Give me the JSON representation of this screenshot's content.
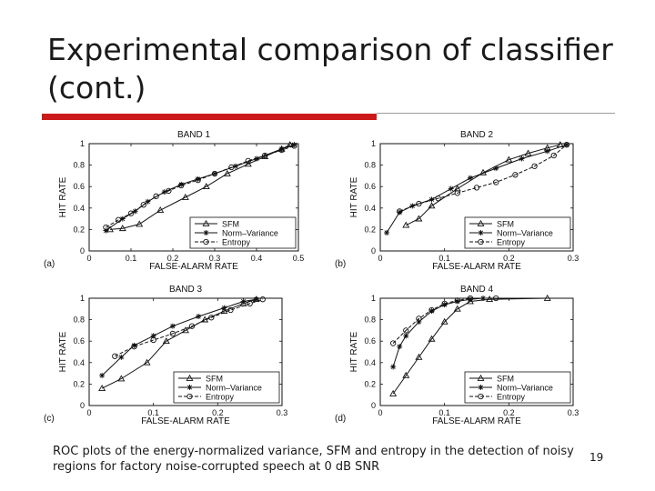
{
  "slide": {
    "title": "Experimental comparison of classifier (cont.)",
    "caption": "ROC plots of the energy-normalized variance, SFM and entropy in the detection of noisy regions for factory noise-corrupted speech at 0 dB SNR",
    "page_number": "19"
  },
  "colors": {
    "title_rule": "#cc1a1a",
    "rule_gray": "#9a9a9a",
    "ink": "#111111"
  },
  "chart_data": [
    {
      "type": "line",
      "panel_label": "(a)",
      "title": "BAND 1",
      "xlabel": "FALSE-ALARM RATE",
      "ylabel": "HIT RATE",
      "xlim": [
        0,
        0.5
      ],
      "ylim": [
        0,
        1
      ],
      "xticks": [
        "0",
        "0.1",
        "0.2",
        "0.3",
        "0.4",
        "0.5"
      ],
      "yticks": [
        "0",
        "0.2",
        "0.4",
        "0.6",
        "0.8",
        "1"
      ],
      "legend_position": "lower-right",
      "series": [
        {
          "name": "SFM",
          "marker": "triangle",
          "dash": "solid",
          "points": [
            [
              0.05,
              0.2
            ],
            [
              0.08,
              0.21
            ],
            [
              0.12,
              0.25
            ],
            [
              0.17,
              0.38
            ],
            [
              0.23,
              0.5
            ],
            [
              0.28,
              0.6
            ],
            [
              0.33,
              0.72
            ],
            [
              0.38,
              0.81
            ],
            [
              0.42,
              0.88
            ],
            [
              0.46,
              0.95
            ],
            [
              0.48,
              0.99
            ]
          ]
        },
        {
          "name": "Norm–Variance",
          "marker": "star",
          "dash": "solid",
          "points": [
            [
              0.04,
              0.19
            ],
            [
              0.08,
              0.3
            ],
            [
              0.11,
              0.37
            ],
            [
              0.14,
              0.46
            ],
            [
              0.18,
              0.55
            ],
            [
              0.22,
              0.62
            ],
            [
              0.26,
              0.67
            ],
            [
              0.3,
              0.72
            ],
            [
              0.35,
              0.79
            ],
            [
              0.4,
              0.86
            ],
            [
              0.46,
              0.95
            ],
            [
              0.49,
              0.99
            ]
          ]
        },
        {
          "name": "Entropy",
          "marker": "circle",
          "dash": "dashed",
          "points": [
            [
              0.04,
              0.22
            ],
            [
              0.07,
              0.29
            ],
            [
              0.1,
              0.35
            ],
            [
              0.13,
              0.43
            ],
            [
              0.16,
              0.51
            ],
            [
              0.19,
              0.56
            ],
            [
              0.22,
              0.61
            ],
            [
              0.26,
              0.66
            ],
            [
              0.3,
              0.72
            ],
            [
              0.34,
              0.78
            ],
            [
              0.38,
              0.84
            ],
            [
              0.42,
              0.89
            ],
            [
              0.46,
              0.94
            ],
            [
              0.49,
              0.98
            ]
          ]
        }
      ]
    },
    {
      "type": "line",
      "panel_label": "(b)",
      "title": "BAND 2",
      "xlabel": "FALSE-ALARM RATE",
      "ylabel": "HIT RATE",
      "xlim": [
        0,
        0.3
      ],
      "ylim": [
        0,
        1
      ],
      "xticks": [
        "0",
        "0.1",
        "0.2",
        "0.3"
      ],
      "yticks": [
        "0",
        "0.2",
        "0.4",
        "0.6",
        "0.8",
        "1"
      ],
      "legend_position": "lower-right",
      "series": [
        {
          "name": "SFM",
          "marker": "triangle",
          "dash": "solid",
          "points": [
            [
              0.04,
              0.24
            ],
            [
              0.06,
              0.3
            ],
            [
              0.08,
              0.42
            ],
            [
              0.12,
              0.58
            ],
            [
              0.16,
              0.73
            ],
            [
              0.2,
              0.85
            ],
            [
              0.23,
              0.91
            ],
            [
              0.26,
              0.96
            ],
            [
              0.28,
              0.99
            ]
          ]
        },
        {
          "name": "Norm–Variance",
          "marker": "star",
          "dash": "solid",
          "points": [
            [
              0.01,
              0.17
            ],
            [
              0.03,
              0.36
            ],
            [
              0.05,
              0.42
            ],
            [
              0.08,
              0.48
            ],
            [
              0.11,
              0.58
            ],
            [
              0.14,
              0.68
            ],
            [
              0.18,
              0.77
            ],
            [
              0.22,
              0.86
            ],
            [
              0.26,
              0.93
            ],
            [
              0.29,
              0.99
            ]
          ]
        },
        {
          "name": "Entropy",
          "marker": "circle",
          "dash": "dashed",
          "points": [
            [
              0.03,
              0.37
            ],
            [
              0.06,
              0.44
            ],
            [
              0.09,
              0.49
            ],
            [
              0.12,
              0.54
            ],
            [
              0.15,
              0.59
            ],
            [
              0.18,
              0.64
            ],
            [
              0.21,
              0.71
            ],
            [
              0.24,
              0.79
            ],
            [
              0.27,
              0.89
            ],
            [
              0.29,
              0.99
            ]
          ]
        }
      ]
    },
    {
      "type": "line",
      "panel_label": "(c)",
      "title": "BAND 3",
      "xlabel": "FALSE-ALARM RATE",
      "ylabel": "HIT RATE",
      "xlim": [
        0,
        0.3
      ],
      "ylim": [
        0,
        1
      ],
      "xticks": [
        "0",
        "0.1",
        "0.2",
        "0.3"
      ],
      "yticks": [
        "0",
        "0.2",
        "0.4",
        "0.6",
        "0.8",
        "1"
      ],
      "legend_position": "lower-right",
      "series": [
        {
          "name": "SFM",
          "marker": "triangle",
          "dash": "solid",
          "points": [
            [
              0.02,
              0.16
            ],
            [
              0.05,
              0.25
            ],
            [
              0.09,
              0.4
            ],
            [
              0.12,
              0.6
            ],
            [
              0.15,
              0.7
            ],
            [
              0.18,
              0.8
            ],
            [
              0.21,
              0.88
            ],
            [
              0.24,
              0.95
            ],
            [
              0.26,
              0.99
            ]
          ]
        },
        {
          "name": "Norm–Variance",
          "marker": "star",
          "dash": "solid",
          "points": [
            [
              0.02,
              0.28
            ],
            [
              0.05,
              0.45
            ],
            [
              0.07,
              0.56
            ],
            [
              0.1,
              0.65
            ],
            [
              0.13,
              0.74
            ],
            [
              0.17,
              0.83
            ],
            [
              0.21,
              0.91
            ],
            [
              0.24,
              0.97
            ],
            [
              0.26,
              0.99
            ]
          ]
        },
        {
          "name": "Entropy",
          "marker": "circle",
          "dash": "dashed",
          "points": [
            [
              0.04,
              0.46
            ],
            [
              0.07,
              0.55
            ],
            [
              0.1,
              0.61
            ],
            [
              0.13,
              0.67
            ],
            [
              0.16,
              0.74
            ],
            [
              0.19,
              0.82
            ],
            [
              0.22,
              0.89
            ],
            [
              0.25,
              0.95
            ],
            [
              0.27,
              0.99
            ]
          ]
        }
      ]
    },
    {
      "type": "line",
      "panel_label": "(d)",
      "title": "BAND 4",
      "xlabel": "FALSE-ALARM RATE",
      "ylabel": "HIT RATE",
      "xlim": [
        0,
        0.3
      ],
      "ylim": [
        0,
        1
      ],
      "xticks": [
        "0",
        "0.1",
        "0.2",
        "0.3"
      ],
      "yticks": [
        "0",
        "0.2",
        "0.4",
        "0.6",
        "0.8",
        "1"
      ],
      "legend_position": "lower-right",
      "series": [
        {
          "name": "SFM",
          "marker": "triangle",
          "dash": "solid",
          "points": [
            [
              0.02,
              0.11
            ],
            [
              0.04,
              0.28
            ],
            [
              0.06,
              0.45
            ],
            [
              0.08,
              0.62
            ],
            [
              0.1,
              0.78
            ],
            [
              0.12,
              0.9
            ],
            [
              0.14,
              0.97
            ],
            [
              0.17,
              0.99
            ],
            [
              0.26,
              1.0
            ]
          ]
        },
        {
          "name": "Norm–Variance",
          "marker": "star",
          "dash": "solid",
          "points": [
            [
              0.02,
              0.36
            ],
            [
              0.03,
              0.55
            ],
            [
              0.04,
              0.65
            ],
            [
              0.06,
              0.78
            ],
            [
              0.08,
              0.88
            ],
            [
              0.1,
              0.94
            ],
            [
              0.12,
              0.97
            ],
            [
              0.14,
              0.99
            ],
            [
              0.16,
              1.0
            ]
          ]
        },
        {
          "name": "Entropy",
          "marker": "circle",
          "dash": "dashed",
          "points": [
            [
              0.02,
              0.58
            ],
            [
              0.04,
              0.7
            ],
            [
              0.06,
              0.81
            ],
            [
              0.08,
              0.89
            ],
            [
              0.1,
              0.95
            ],
            [
              0.12,
              0.98
            ],
            [
              0.14,
              1.0
            ],
            [
              0.18,
              1.0
            ]
          ]
        }
      ]
    }
  ]
}
